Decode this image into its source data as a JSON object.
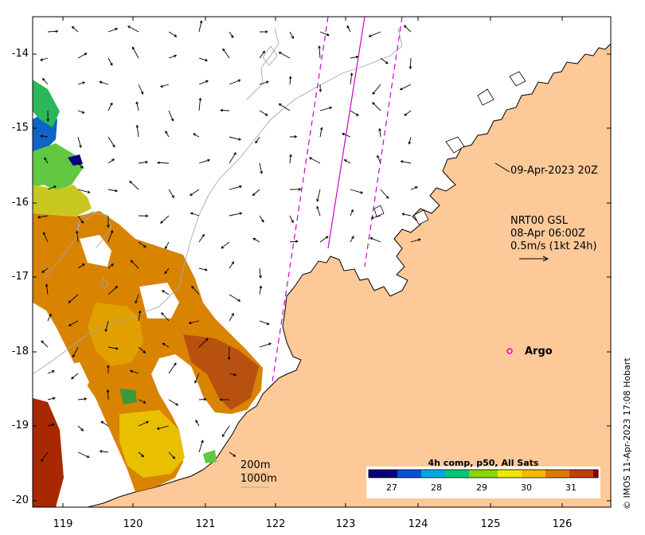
{
  "map": {
    "y_ticks": [
      "-14",
      "-15",
      "-16",
      "-17",
      "-18",
      "-19",
      "-20"
    ],
    "x_ticks": [
      "119",
      "120",
      "121",
      "122",
      "123",
      "124",
      "125",
      "126"
    ],
    "lat_range": [
      -20.1,
      -13.5
    ],
    "lon_range": [
      118.6,
      126.7
    ],
    "colors": {
      "land": "#fdc999",
      "ocean": "#ffffff",
      "track": "#cc00cc",
      "contour": "#a8a8a8",
      "argo": "#ee00ee"
    }
  },
  "annotations": {
    "pass_time": "09-Apr-2023 20Z",
    "current_source": "NRT00 GSL",
    "current_time": "08-Apr 06:00Z",
    "current_scale": "0.5m/s (1kt 24h)",
    "argo_label": "Argo",
    "isobath_200": "200m",
    "isobath_1000": "1000m"
  },
  "colorbar": {
    "title": "4h comp, p50, All Sats",
    "ticks": [
      "27",
      "28",
      "29",
      "30",
      "31"
    ],
    "range": [
      26.5,
      31.6
    ],
    "colors": [
      "#08007a",
      "#0050d8",
      "#00a8e0",
      "#00c878",
      "#88d800",
      "#f0e800",
      "#f8b800",
      "#e07800",
      "#c04000",
      "#900000"
    ]
  },
  "credit": "© IMOS 11-Apr-2023 17:08 Hobart"
}
